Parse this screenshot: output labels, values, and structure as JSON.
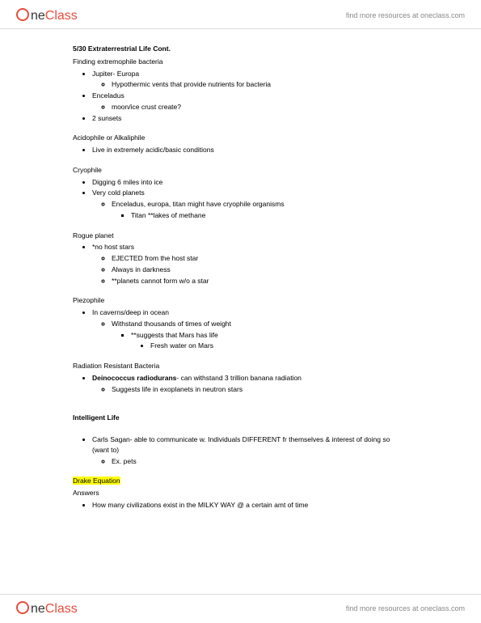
{
  "brand": {
    "part1": "ne",
    "part2": "Class",
    "tagline": "find more resources at oneclass.com"
  },
  "doc": {
    "title": "5/30 Extraterrestrial Life Cont.",
    "s1_intro": "Finding extremophile bacteria",
    "s1": {
      "a": "Jupiter- Europa",
      "a1": "Hypothermic vents that provide nutrients for bacteria",
      "b": "Enceladus",
      "b1": "moon/ice crust create?",
      "c": "2 sunsets"
    },
    "s2_title": "Acidophile or Alkaliphile",
    "s2": {
      "a": "Live in extremely acidic/basic conditions"
    },
    "s3_title": "Cryophile",
    "s3": {
      "a": "Digging 6 miles into ice",
      "b": "Very cold planets",
      "b1": "Enceladus, europa, titan might have cryophile organisms",
      "b1a": "Titan **lakes of methane"
    },
    "s4_title": "Rogue planet",
    "s4": {
      "a": "*no host stars",
      "a1": "EJECTED from the host star",
      "a2": "Always in darkness",
      "a3": "**planets cannot form w/o a star"
    },
    "s5_title": "Piezophile",
    "s5": {
      "a": "In caverns/deep in ocean",
      "a1": "Withstand thousands of times of weight",
      "a1a": "**suggests that Mars has life",
      "a1a1": "Fresh water on Mars"
    },
    "s6_title": "Radiation Resistant Bacteria",
    "s6": {
      "a_bold": "Deinococcus radiodurans",
      "a_rest": "- can withstand 3 trillion banana radiation",
      "a1": "Suggests life in exoplanets in neutron stars"
    },
    "s7_title": "Intelligent Life",
    "s7": {
      "a": "Carls Sagan- able to communicate w. Individuals DIFFERENT fr themselves & interest of doing so (want to)",
      "a1": "Ex. pets"
    },
    "s8_title": "Drake Equation",
    "s8_sub": "Answers",
    "s8": {
      "a": "How many civilizations exist in the MILKY WAY @ a certain amt of time"
    }
  }
}
